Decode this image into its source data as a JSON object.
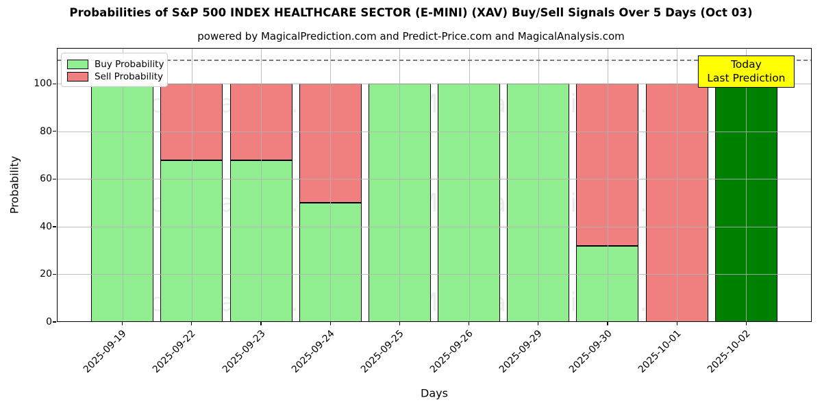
{
  "title": "Probabilities of S&P 500 INDEX HEALTHCARE SECTOR (E-MINI) (XAV) Buy/Sell Signals Over 5 Days (Oct 03)",
  "subtitle": "powered by MagicalPrediction.com and Predict-Price.com and MagicalAnalysis.com",
  "legend": {
    "items": [
      {
        "label": "Buy Probability",
        "color": "#90EE90"
      },
      {
        "label": "Sell Probability",
        "color": "#F08080"
      }
    ]
  },
  "annotation": {
    "line1": "Today",
    "line2": "Last Prediction",
    "bg_color": "#FFFF00"
  },
  "watermarks": [
    "MagicalAnalysis.com",
    "MagicalPrediction.com"
  ],
  "chart_data": {
    "type": "bar",
    "stacked": true,
    "title": "Probabilities of S&P 500 INDEX HEALTHCARE SECTOR (E-MINI) (XAV) Buy/Sell Signals Over 5 Days (Oct 03)",
    "xlabel": "Days",
    "ylabel": "Probability",
    "categories": [
      "2025-09-19",
      "2025-09-22",
      "2025-09-23",
      "2025-09-24",
      "2025-09-25",
      "2025-09-26",
      "2025-09-29",
      "2025-09-30",
      "2025-10-01",
      "2025-10-02"
    ],
    "series": [
      {
        "name": "Buy Probability",
        "color": "#90EE90",
        "values": [
          100,
          68,
          68,
          50,
          100,
          100,
          100,
          32,
          0,
          100
        ]
      },
      {
        "name": "Sell Probability",
        "color": "#F08080",
        "values": [
          0,
          32,
          32,
          50,
          0,
          0,
          0,
          68,
          100,
          0
        ]
      }
    ],
    "today_index": 9,
    "today_color": "#008000",
    "bar_edge_color": "#000000",
    "ylim": [
      0,
      115
    ],
    "yticks": [
      0,
      20,
      40,
      60,
      80,
      100
    ],
    "dashed_line_y": 110,
    "grid": true,
    "legend_position": "upper left"
  }
}
